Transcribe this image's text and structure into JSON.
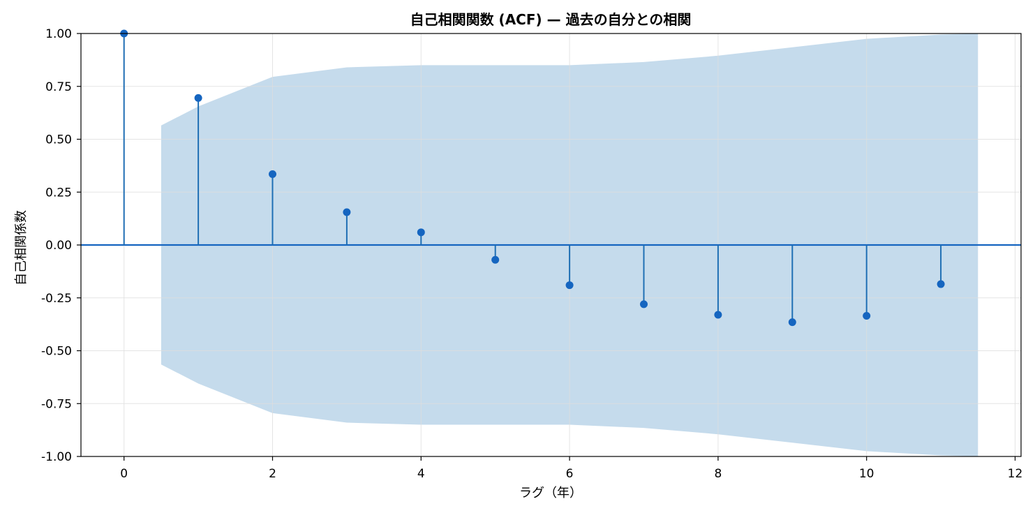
{
  "chart_data": {
    "type": "stem",
    "title": "自己相関関数 (ACF) — 過去の自分との相関",
    "xlabel": "ラグ（年）",
    "ylabel": "自己相関係数",
    "xlim": [
      -0.58,
      12.08
    ],
    "ylim": [
      -1.0,
      1.0
    ],
    "x_ticks": [
      0,
      2,
      4,
      6,
      8,
      10,
      12
    ],
    "y_ticks": [
      1.0,
      0.75,
      0.5,
      0.25,
      0.0,
      -0.25,
      -0.5,
      -0.75,
      -1.0
    ],
    "y_tick_labels": [
      "1.00",
      "0.75",
      "0.50",
      "0.25",
      "0.00",
      "-0.25",
      "-0.50",
      "-0.75",
      "-1.00"
    ],
    "grid": true,
    "lags": [
      0,
      1,
      2,
      3,
      4,
      5,
      6,
      7,
      8,
      9,
      10,
      11
    ],
    "acf": [
      1.0,
      0.695,
      0.335,
      0.155,
      0.06,
      -0.07,
      -0.19,
      -0.28,
      -0.33,
      -0.365,
      -0.335,
      -0.185
    ],
    "confidence_band": {
      "x": [
        0.5,
        1,
        2,
        3,
        4,
        5,
        6,
        7,
        8,
        9,
        10,
        11,
        11.5
      ],
      "upper": [
        0.565,
        0.655,
        0.795,
        0.84,
        0.85,
        0.85,
        0.85,
        0.865,
        0.895,
        0.935,
        0.975,
        0.995,
        1.0
      ]
    },
    "colors": {
      "stem": "#1f6fb4",
      "marker": "#1565c0",
      "zero_line": "#1565c0",
      "band": "#c5dbec",
      "grid": "#dddddd",
      "spine": "#000000"
    }
  }
}
